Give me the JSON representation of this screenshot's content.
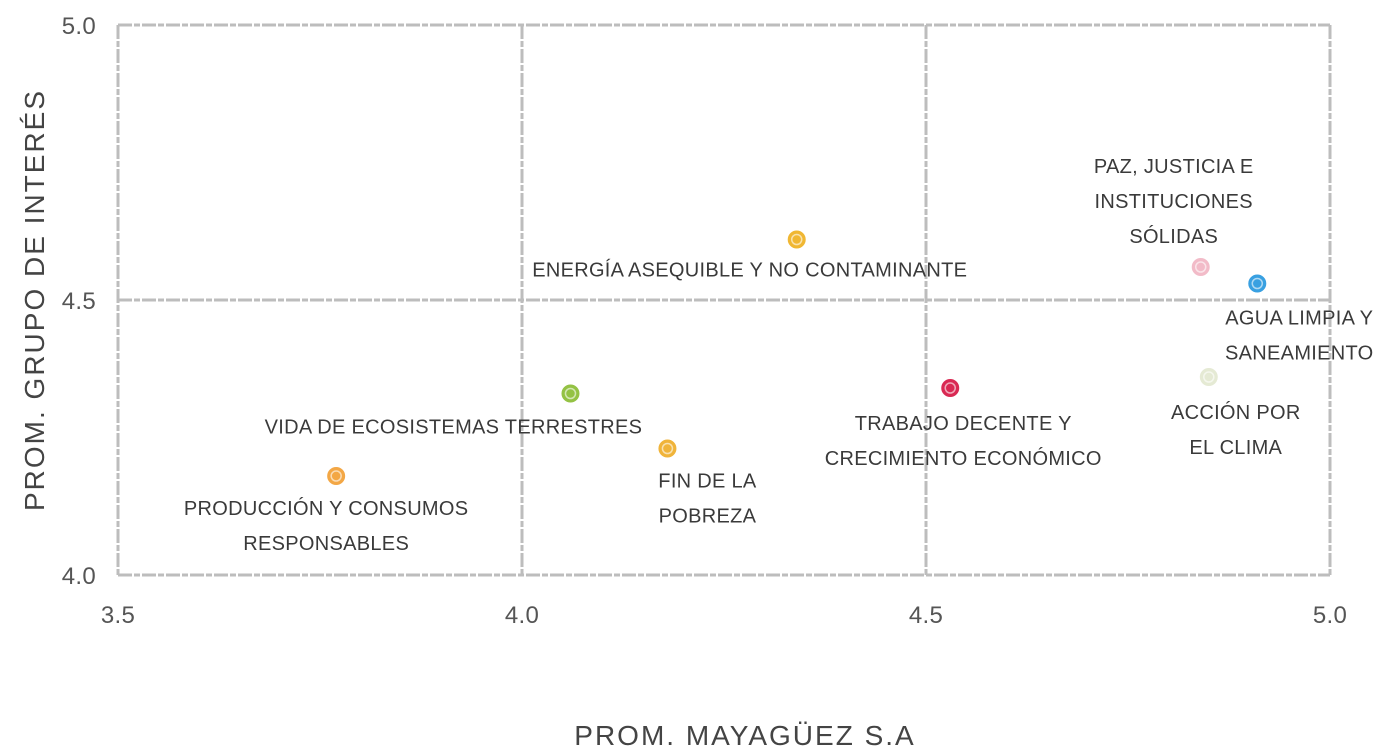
{
  "chart_data": {
    "type": "scatter",
    "x_label": "PROM. MAYAGÜEZ S.A",
    "y_label": "PROM. GRUPO DE INTERÉS",
    "labels": [
      [
        "ENERGÍA ASEQUIBLE Y NO CONTAMINANTE"
      ],
      [
        "PAZ, JUSTICIA E",
        "INSTITUCIONES",
        "SÓLIDAS"
      ],
      [
        "AGUA LIMPIA Y",
        "SANEAMIENTO"
      ],
      [
        "ACCIÓN POR",
        "EL CLIMA"
      ],
      [
        "TRABAJO DECENTE Y",
        "CRECIMIENTO ECONÓMICO"
      ],
      [
        "VIDA DE ECOSISTEMAS TERRESTRES"
      ],
      [
        "FIN DE LA",
        "POBREZA"
      ],
      [
        "PRODUCCIÓN Y CONSUMOS",
        "RESPONSABLES"
      ]
    ],
    "x": [
      4.34,
      4.84,
      4.91,
      4.85,
      4.53,
      4.06,
      4.18,
      3.77
    ],
    "values": [
      4.61,
      4.56,
      4.53,
      4.36,
      4.34,
      4.33,
      4.23,
      4.18
    ],
    "colors": [
      "#f0b429",
      "#f2b8c6",
      "#2f9be0",
      "#e4e9d2",
      "#d81e4a",
      "#8fbf3a",
      "#f0b030",
      "#f3a33c"
    ],
    "xlim": [
      3.5,
      5.0
    ],
    "ylim": [
      4.0,
      5.0
    ],
    "xticks": [
      {
        "value": 3.5,
        "label": "3.5"
      },
      {
        "value": 4,
        "label": "4.0"
      },
      4.5,
      {
        "value": 5,
        "label": "5.0"
      }
    ],
    "yticks": [
      {
        "value": 4,
        "label": "4.0"
      },
      4.5,
      {
        "value": 5,
        "label": "5.0"
      }
    ],
    "grid": true
  }
}
